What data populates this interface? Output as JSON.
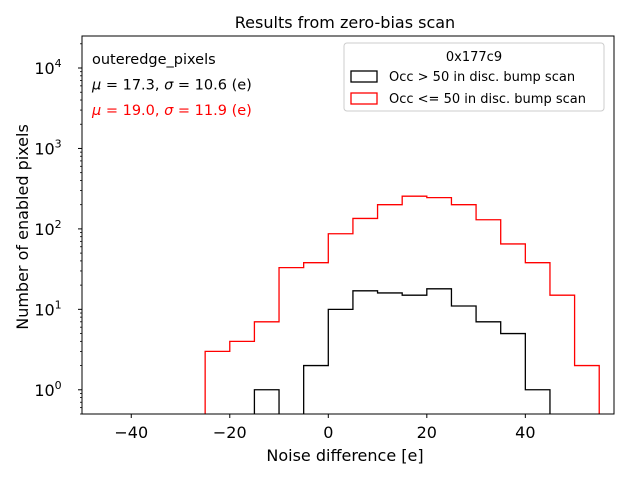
{
  "chart_data": {
    "type": "histogram-step",
    "title": "Results from zero-bias scan",
    "xlabel": "Noise difference [e]",
    "ylabel": "Number of enabled pixels",
    "xlim": [
      -50,
      58
    ],
    "ylim_log": [
      0.5,
      25000
    ],
    "yscale": "log",
    "xticks": [
      -40,
      -20,
      0,
      20,
      40
    ],
    "xtick_labels": [
      "−40",
      "−20",
      "0",
      "20",
      "40"
    ],
    "yticks": [
      1,
      10,
      100,
      1000,
      10000
    ],
    "ytick_exponents": [
      "0",
      "1",
      "2",
      "3",
      "4"
    ],
    "bin_edges": [
      -50,
      -45,
      -40,
      -35,
      -30,
      -25,
      -20,
      -15,
      -10,
      -5,
      0,
      5,
      10,
      15,
      20,
      25,
      30,
      35,
      40,
      45,
      50,
      55,
      60
    ],
    "series": [
      {
        "name": "Occ > 50 in disc. bump scan",
        "color": "#000000",
        "values": [
          0,
          0,
          0,
          0,
          0,
          0,
          0,
          1,
          0,
          2,
          10,
          17,
          16,
          15,
          18,
          11,
          7,
          5,
          1,
          0,
          0,
          0
        ]
      },
      {
        "name": "Occ <= 50 in disc. bump scan",
        "color": "#ff0000",
        "values": [
          0,
          0,
          0,
          0,
          0,
          3,
          4,
          7,
          33,
          38,
          87,
          135,
          200,
          255,
          245,
          200,
          130,
          65,
          38,
          15,
          2,
          0
        ]
      }
    ],
    "annotations": [
      {
        "text_parts": [
          "outeredge_pixels"
        ],
        "color": "#000000"
      },
      {
        "text_parts": [
          "μ",
          " = 17.3, ",
          "σ",
          " = 10.6 (e)"
        ],
        "color": "#000000"
      },
      {
        "text_parts": [
          "μ",
          " = 19.0, ",
          "σ",
          " = 11.9 (e)"
        ],
        "color": "#ff0000"
      }
    ],
    "legend": {
      "title": "0x177c9",
      "placement": "top-right",
      "entries": [
        "Occ > 50 in disc. bump scan",
        "Occ <= 50 in disc. bump scan"
      ]
    }
  }
}
